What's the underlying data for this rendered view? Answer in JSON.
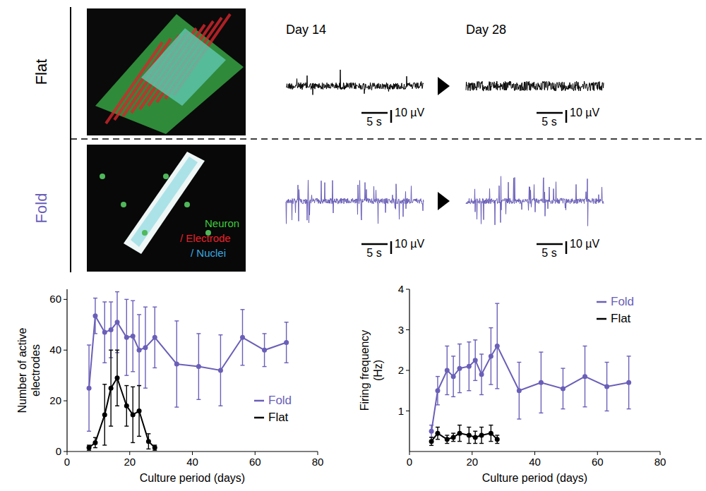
{
  "rows": [
    "Flat",
    "Fold"
  ],
  "days": [
    "Day 14",
    "Day 28"
  ],
  "scale_bars": {
    "time": "5 s",
    "voltage": "10 µV"
  },
  "stain_legend": [
    {
      "label": "Neuron",
      "color": "#3ec83e"
    },
    {
      "label": "/ Electrode",
      "color": "#e8202a"
    },
    {
      "label": "/ Nuclei",
      "color": "#3aa8e0"
    }
  ],
  "trace_colors": {
    "Flat": "#000000",
    "Fold": "#6a5fb8"
  },
  "chart_data": [
    {
      "type": "line",
      "x_label": "Culture period (days)",
      "y_label": "Number of active electrodes",
      "xlim": [
        0,
        80
      ],
      "xticks": [
        0,
        20,
        40,
        60,
        80
      ],
      "ylim": [
        0,
        64
      ],
      "yticks": [
        0,
        20,
        40,
        60
      ],
      "legend": "right",
      "marker": "circle",
      "series": [
        {
          "name": "Fold",
          "color": "#6a5fb8",
          "x": [
            7,
            9,
            12,
            14,
            16,
            19,
            21,
            23,
            25,
            28,
            35,
            42,
            49,
            56,
            63,
            70
          ],
          "values": [
            25,
            53.5,
            47,
            48,
            51,
            45,
            45.5,
            40,
            41,
            45,
            34.5,
            33.5,
            32,
            45,
            40,
            43
          ],
          "errors": [
            17,
            7,
            12,
            11,
            12,
            15,
            14,
            14,
            16,
            12,
            17,
            13,
            14,
            11,
            6.5,
            8
          ]
        },
        {
          "name": "Flat",
          "color": "#000000",
          "x": [
            7,
            9,
            12,
            14,
            16,
            19,
            21,
            23,
            26,
            28
          ],
          "values": [
            1.5,
            3.5,
            14.5,
            25,
            29,
            18,
            14.5,
            16,
            4,
            1.5
          ],
          "errors": [
            1,
            2,
            12,
            15,
            11,
            8,
            11,
            10,
            3,
            1
          ]
        }
      ]
    },
    {
      "type": "line",
      "x_label": "Culture period (days)",
      "y_label": "Firing frequency (Hz)",
      "xlim": [
        0,
        80
      ],
      "xticks": [
        0,
        20,
        40,
        60,
        80
      ],
      "ylim": [
        0,
        4
      ],
      "yticks": [
        1,
        2,
        3,
        4
      ],
      "legend": "upper right",
      "marker": "circle",
      "series": [
        {
          "name": "Fold",
          "color": "#6a5fb8",
          "x": [
            7,
            9,
            12,
            14,
            16,
            19,
            21,
            23,
            26,
            28,
            35,
            42,
            49,
            56,
            63,
            70
          ],
          "values": [
            0.5,
            1.5,
            2.0,
            1.85,
            2.05,
            2.1,
            2.25,
            1.9,
            2.35,
            2.6,
            1.5,
            1.7,
            1.55,
            1.85,
            1.6,
            1.7
          ],
          "errors": [
            0.15,
            0.35,
            0.6,
            0.5,
            0.6,
            0.6,
            0.5,
            0.5,
            0.7,
            1.05,
            0.7,
            0.75,
            0.5,
            0.75,
            0.6,
            0.65
          ]
        },
        {
          "name": "Flat",
          "color": "#000000",
          "x": [
            7,
            9,
            12,
            14,
            16,
            19,
            21,
            23,
            26,
            28
          ],
          "values": [
            0.25,
            0.45,
            0.3,
            0.35,
            0.45,
            0.4,
            0.35,
            0.4,
            0.45,
            0.3
          ],
          "errors": [
            0.1,
            0.15,
            0.1,
            0.1,
            0.2,
            0.2,
            0.15,
            0.2,
            0.2,
            0.1
          ]
        }
      ]
    }
  ]
}
